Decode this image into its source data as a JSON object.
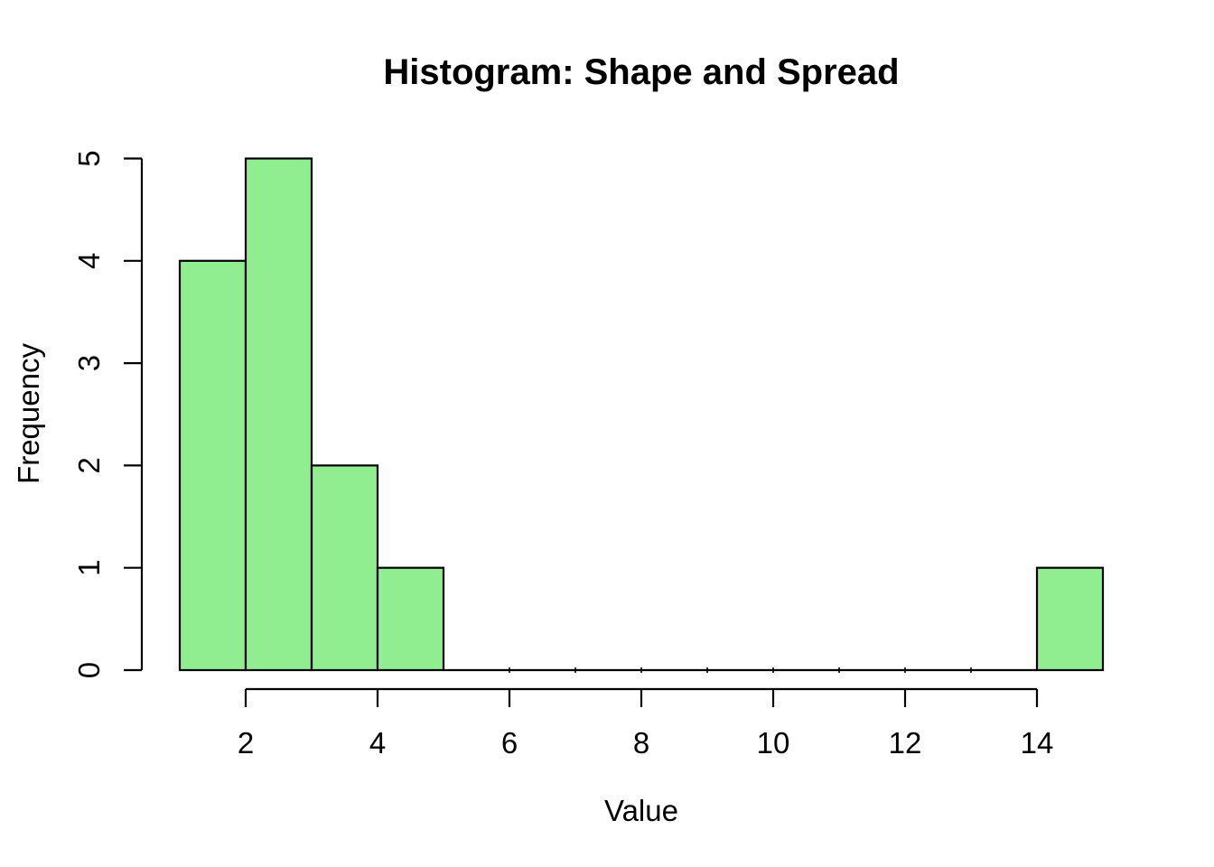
{
  "chart_data": {
    "type": "bar",
    "variant": "histogram",
    "title": "Histogram: Shape and Spread",
    "xlabel": "Value",
    "ylabel": "Frequency",
    "xlim": [
      1,
      15
    ],
    "ylim": [
      0,
      5
    ],
    "x_ticks": [
      2,
      4,
      6,
      8,
      10,
      12,
      14
    ],
    "y_ticks": [
      0,
      1,
      2,
      3,
      4,
      5
    ],
    "grid": false,
    "legend": "none",
    "bins": [
      {
        "from": 1,
        "to": 2,
        "count": 4
      },
      {
        "from": 2,
        "to": 3,
        "count": 5
      },
      {
        "from": 3,
        "to": 4,
        "count": 2
      },
      {
        "from": 4,
        "to": 5,
        "count": 1
      },
      {
        "from": 5,
        "to": 6,
        "count": 0
      },
      {
        "from": 6,
        "to": 7,
        "count": 0
      },
      {
        "from": 7,
        "to": 8,
        "count": 0
      },
      {
        "from": 8,
        "to": 9,
        "count": 0
      },
      {
        "from": 9,
        "to": 10,
        "count": 0
      },
      {
        "from": 10,
        "to": 11,
        "count": 0
      },
      {
        "from": 11,
        "to": 12,
        "count": 0
      },
      {
        "from": 12,
        "to": 13,
        "count": 0
      },
      {
        "from": 13,
        "to": 14,
        "count": 0
      },
      {
        "from": 14,
        "to": 15,
        "count": 1
      }
    ],
    "colors": {
      "bar_fill": "#90EE90",
      "bar_stroke": "#000000",
      "axis": "#000000",
      "text": "#000000",
      "background": "#ffffff"
    }
  }
}
